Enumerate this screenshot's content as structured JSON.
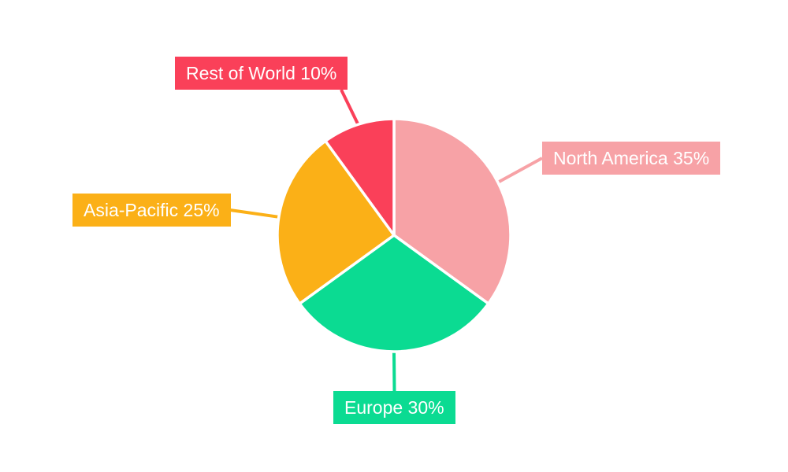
{
  "page": {
    "background_color": "#ffffff"
  },
  "chart_data": {
    "type": "pie",
    "title": "",
    "categories": [
      "North America",
      "Europe",
      "Asia-Pacific",
      "Rest of World"
    ],
    "values": [
      35,
      30,
      25,
      10
    ],
    "unit": "%",
    "labels": [
      "North America 35%",
      "Europe 30%",
      "Asia-Pacific 25%",
      "Rest of World 10%"
    ],
    "colors": [
      "#F7A2A6",
      "#0BDB92",
      "#FBB017",
      "#FA4059"
    ],
    "slice_border_color": "#ffffff",
    "label_text_color": "#ffffff",
    "start_angle_deg": 0,
    "direction": "clockwise",
    "legend": "none",
    "grid": "off",
    "annotation_style": "colored-callout-boxes-with-leader-lines"
  }
}
